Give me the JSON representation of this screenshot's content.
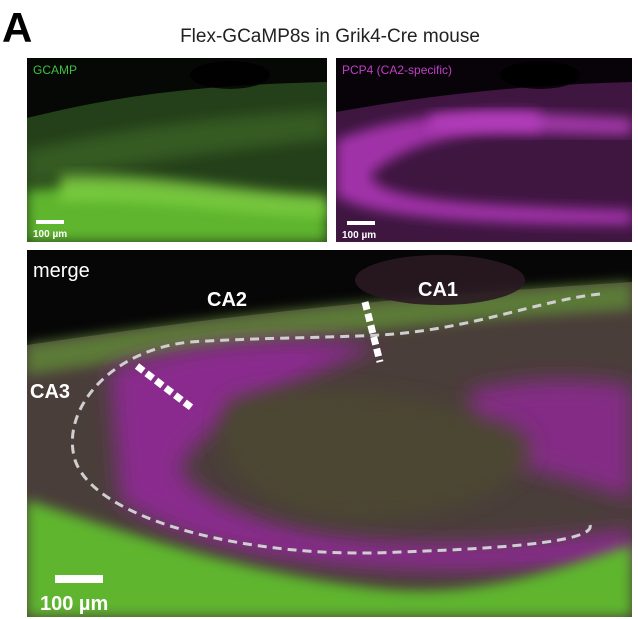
{
  "panel_label": "A",
  "title": "Flex-GCaMP8s in Grik4-Cre mouse",
  "panels": [
    {
      "label": "GCAMP",
      "scale_bar": "100 µm"
    },
    {
      "label": "PCP4 (CA2-specific)",
      "scale_bar": "100 µm"
    }
  ],
  "merge": {
    "label": "merge",
    "regions": [
      "CA2",
      "CA1",
      "CA3"
    ],
    "scale_bar": "100 µm"
  }
}
